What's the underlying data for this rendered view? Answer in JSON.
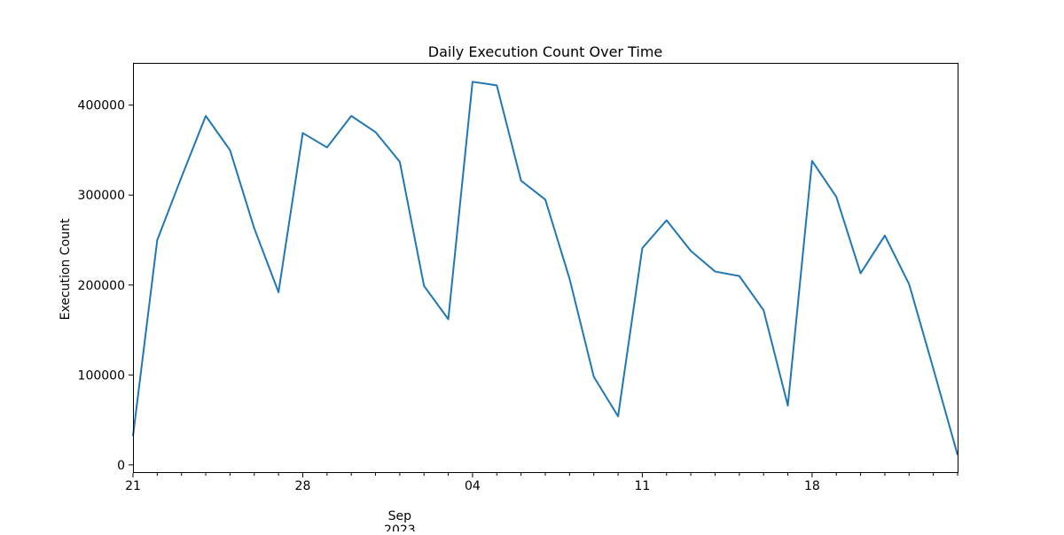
{
  "chart_data": {
    "type": "line",
    "title": "Daily Execution Count Over Time",
    "xlabel": "",
    "ylabel": "Execution Count",
    "x": [
      "2023-08-21",
      "2023-08-22",
      "2023-08-23",
      "2023-08-24",
      "2023-08-25",
      "2023-08-26",
      "2023-08-27",
      "2023-08-28",
      "2023-08-29",
      "2023-08-30",
      "2023-08-31",
      "2023-09-01",
      "2023-09-02",
      "2023-09-03",
      "2023-09-04",
      "2023-09-05",
      "2023-09-06",
      "2023-09-07",
      "2023-09-08",
      "2023-09-09",
      "2023-09-10",
      "2023-09-11",
      "2023-09-12",
      "2023-09-13",
      "2023-09-14",
      "2023-09-15",
      "2023-09-16",
      "2023-09-17",
      "2023-09-18",
      "2023-09-19",
      "2023-09-20",
      "2023-09-21",
      "2023-09-22",
      "2023-09-23",
      "2023-09-24"
    ],
    "series": [
      {
        "color": "#1f77b4",
        "values": [
          32000,
          250000,
          320000,
          388000,
          350000,
          263000,
          192000,
          369000,
          353000,
          388000,
          370000,
          337000,
          199000,
          162000,
          426000,
          422000,
          316000,
          295000,
          207000,
          98000,
          54000,
          241000,
          272000,
          238000,
          215000,
          210000,
          172000,
          66000,
          338000,
          298000,
          213000,
          255000,
          201000,
          107000,
          11000
        ]
      }
    ],
    "xlim": [
      "2023-08-21",
      "2023-09-24"
    ],
    "ylim": [
      -9000,
      446000
    ],
    "y_ticks": [
      0,
      100000,
      200000,
      300000,
      400000
    ],
    "y_tick_labels": [
      "0",
      "100000",
      "200000",
      "300000",
      "400000"
    ],
    "x_major_ticks": [
      "2023-08-21",
      "2023-08-28",
      "2023-09-04",
      "2023-09-11",
      "2023-09-18"
    ],
    "x_major_tick_labels": [
      "21",
      "28",
      "04",
      "11",
      "18"
    ],
    "x_secondary_label": {
      "date": "2023-09-01",
      "lines": [
        "Sep",
        "2023"
      ]
    },
    "grid": false,
    "legend": "none"
  }
}
